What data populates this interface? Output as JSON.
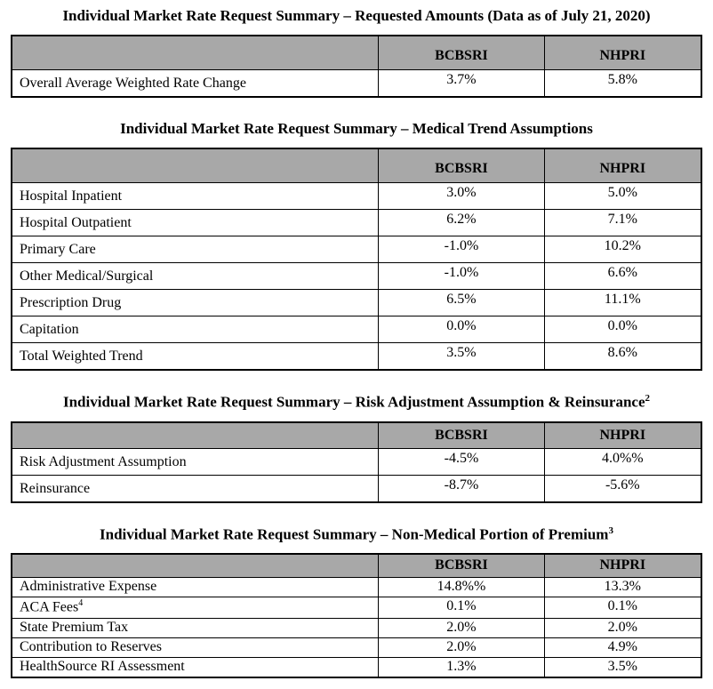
{
  "page": {
    "background": "#ffffff",
    "header_bg": "#a8a8a8",
    "border_color": "#000000",
    "data_as_of": "July 21, 2020"
  },
  "columns": [
    "BCBSRI",
    "NHPRI"
  ],
  "tables": [
    {
      "title": "Individual Market Rate Request Summary – Requested Amounts (Data as of July 21, 2020)",
      "title_sup": "",
      "rows": [
        {
          "label": "Overall Average Weighted Rate Change",
          "bcbsri": "3.7%",
          "nhpri": "5.8%"
        }
      ]
    },
    {
      "title": "Individual Market Rate Request Summary – Medical Trend Assumptions",
      "title_sup": "",
      "rows": [
        {
          "label": "Hospital Inpatient",
          "bcbsri": "3.0%",
          "nhpri": "5.0%"
        },
        {
          "label": "Hospital Outpatient",
          "bcbsri": "6.2%",
          "nhpri": "7.1%"
        },
        {
          "label": "Primary Care",
          "bcbsri": "-1.0%",
          "nhpri": "10.2%"
        },
        {
          "label": "Other Medical/Surgical",
          "bcbsri": "-1.0%",
          "nhpri": "6.6%"
        },
        {
          "label": "Prescription Drug",
          "bcbsri": "6.5%",
          "nhpri": "11.1%"
        },
        {
          "label": "Capitation",
          "bcbsri": "0.0%",
          "nhpri": "0.0%"
        },
        {
          "label": "Total Weighted Trend",
          "bcbsri": "3.5%",
          "nhpri": "8.6%"
        }
      ]
    },
    {
      "title": "Individual Market Rate Request Summary – Risk Adjustment Assumption & Reinsurance",
      "title_sup": "2",
      "rows": [
        {
          "label": "Risk Adjustment Assumption",
          "bcbsri": "-4.5%",
          "nhpri": "4.0%%"
        },
        {
          "label": "Reinsurance",
          "bcbsri": "-8.7%",
          "nhpri": "-5.6%"
        }
      ]
    },
    {
      "title": "Individual Market Rate Request Summary – Non-Medical Portion of Premium",
      "title_sup": "3",
      "rows": [
        {
          "label": "Administrative Expense",
          "bcbsri": "14.8%%",
          "nhpri": "13.3%"
        },
        {
          "label": "ACA Fees",
          "label_sup": "4",
          "bcbsri": "0.1%",
          "nhpri": "0.1%"
        },
        {
          "label": "State Premium Tax",
          "bcbsri": "2.0%",
          "nhpri": "2.0%"
        },
        {
          "label": "Contribution to Reserves",
          "bcbsri": "2.0%",
          "nhpri": "4.9%"
        },
        {
          "label": "HealthSource RI Assessment",
          "bcbsri": "1.3%",
          "nhpri": "3.5%"
        }
      ]
    }
  ]
}
